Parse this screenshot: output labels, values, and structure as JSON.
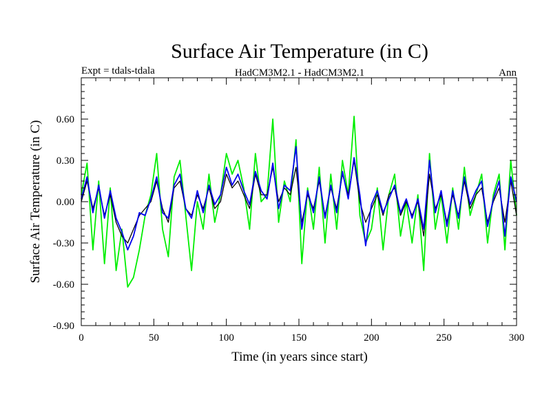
{
  "chart_data": {
    "type": "line",
    "title": "Surface Air Temperature (in C)",
    "subtitle_left": "Expt = tdals-tdala",
    "subtitle_center": "HadCM3M2.1 - HadCM3M2.1",
    "subtitle_right": "Ann",
    "xlabel": "Time (in years since start)",
    "ylabel": "Surface Air Temperature (in C)",
    "xlim": [
      0,
      300
    ],
    "ylim": [
      -0.9,
      0.9
    ],
    "xticks": [
      0,
      50,
      100,
      150,
      200,
      250,
      300
    ],
    "xtick_labels": [
      "0",
      "50",
      "100",
      "150",
      "200",
      "250",
      "300"
    ],
    "yticks": [
      -0.9,
      -0.6,
      -0.3,
      0.0,
      0.3,
      0.6
    ],
    "ytick_labels": [
      "-0.90",
      "-0.60",
      "-0.30",
      "0.00",
      "0.30",
      "0.60"
    ],
    "grid": false,
    "series": [
      {
        "name": "green",
        "color": "#00ee00",
        "x": [
          0,
          4,
          8,
          12,
          16,
          20,
          24,
          28,
          32,
          36,
          40,
          44,
          48,
          52,
          56,
          60,
          64,
          68,
          72,
          76,
          80,
          84,
          88,
          92,
          96,
          100,
          104,
          108,
          112,
          116,
          120,
          124,
          128,
          132,
          136,
          140,
          144,
          148,
          152,
          156,
          160,
          164,
          168,
          172,
          176,
          180,
          184,
          188,
          192,
          196,
          200,
          204,
          208,
          212,
          216,
          220,
          224,
          228,
          232,
          236,
          240,
          244,
          248,
          252,
          256,
          260,
          264,
          268,
          272,
          276,
          280,
          284,
          288,
          292,
          296,
          300
        ],
        "values": [
          0.05,
          0.28,
          -0.35,
          0.15,
          -0.45,
          0.1,
          -0.5,
          -0.2,
          -0.62,
          -0.55,
          -0.35,
          -0.1,
          0.05,
          0.35,
          -0.2,
          -0.4,
          0.18,
          0.3,
          -0.1,
          -0.5,
          0.0,
          -0.2,
          0.2,
          -0.15,
          0.05,
          0.35,
          0.2,
          0.3,
          0.1,
          -0.2,
          0.35,
          0.0,
          0.05,
          0.6,
          -0.15,
          0.15,
          0.0,
          0.45,
          -0.45,
          0.1,
          -0.2,
          0.25,
          -0.3,
          0.2,
          -0.2,
          0.3,
          0.05,
          0.62,
          -0.1,
          -0.3,
          -0.2,
          0.1,
          -0.35,
          0.05,
          0.2,
          -0.25,
          0.0,
          -0.3,
          0.05,
          -0.5,
          0.35,
          -0.2,
          0.05,
          -0.3,
          0.1,
          -0.2,
          0.25,
          -0.1,
          0.05,
          0.2,
          -0.3,
          0.05,
          0.2,
          -0.35,
          0.3,
          -0.1
        ]
      },
      {
        "name": "black",
        "color": "#000000",
        "x": [
          0,
          4,
          8,
          12,
          16,
          20,
          24,
          28,
          32,
          36,
          40,
          44,
          48,
          52,
          56,
          60,
          64,
          68,
          72,
          76,
          80,
          84,
          88,
          92,
          96,
          100,
          104,
          108,
          112,
          116,
          120,
          124,
          128,
          132,
          136,
          140,
          144,
          148,
          152,
          156,
          160,
          164,
          168,
          172,
          176,
          180,
          184,
          188,
          192,
          196,
          200,
          204,
          208,
          212,
          216,
          220,
          224,
          228,
          232,
          236,
          240,
          244,
          248,
          252,
          256,
          260,
          264,
          268,
          272,
          276,
          280,
          284,
          288,
          292,
          296,
          300
        ],
        "values": [
          0.0,
          0.15,
          -0.05,
          0.1,
          -0.1,
          0.05,
          -0.15,
          -0.25,
          -0.3,
          -0.2,
          -0.1,
          -0.05,
          0.0,
          0.15,
          -0.05,
          -0.15,
          0.1,
          0.15,
          -0.05,
          -0.1,
          0.05,
          -0.05,
          0.1,
          -0.05,
          0.0,
          0.2,
          0.1,
          0.15,
          0.05,
          -0.05,
          0.2,
          0.05,
          0.05,
          0.25,
          0.0,
          0.1,
          0.05,
          0.25,
          -0.15,
          0.05,
          -0.05,
          0.15,
          -0.1,
          0.1,
          -0.05,
          0.2,
          0.05,
          0.3,
          0.0,
          -0.15,
          -0.05,
          0.05,
          -0.1,
          0.05,
          0.1,
          -0.1,
          0.0,
          -0.1,
          0.0,
          -0.25,
          0.2,
          -0.05,
          0.05,
          -0.15,
          0.05,
          -0.1,
          0.15,
          -0.05,
          0.05,
          0.1,
          -0.15,
          0.0,
          0.1,
          -0.15,
          0.15,
          -0.1
        ]
      },
      {
        "name": "blue",
        "color": "#0000ee",
        "x": [
          0,
          4,
          8,
          12,
          16,
          20,
          24,
          28,
          32,
          36,
          40,
          44,
          48,
          52,
          56,
          60,
          64,
          68,
          72,
          76,
          80,
          84,
          88,
          92,
          96,
          100,
          104,
          108,
          112,
          116,
          120,
          124,
          128,
          132,
          136,
          140,
          144,
          148,
          152,
          156,
          160,
          164,
          168,
          172,
          176,
          180,
          184,
          188,
          192,
          196,
          200,
          204,
          208,
          212,
          216,
          220,
          224,
          228,
          232,
          236,
          240,
          244,
          248,
          252,
          256,
          260,
          264,
          268,
          272,
          276,
          280,
          284,
          288,
          292,
          296,
          300
        ],
        "values": [
          0.02,
          0.18,
          -0.08,
          0.12,
          -0.12,
          0.08,
          -0.12,
          -0.22,
          -0.35,
          -0.25,
          -0.08,
          -0.1,
          0.02,
          0.18,
          -0.08,
          -0.12,
          0.12,
          0.2,
          -0.05,
          -0.12,
          0.08,
          -0.08,
          0.12,
          -0.02,
          0.05,
          0.25,
          0.12,
          0.2,
          0.08,
          -0.02,
          0.22,
          0.08,
          0.02,
          0.28,
          -0.05,
          0.12,
          0.08,
          0.4,
          -0.2,
          0.08,
          -0.08,
          0.18,
          -0.12,
          0.12,
          -0.08,
          0.22,
          0.02,
          0.32,
          0.05,
          -0.32,
          -0.02,
          0.08,
          -0.08,
          0.02,
          0.12,
          -0.08,
          0.02,
          -0.12,
          0.02,
          -0.2,
          0.3,
          -0.08,
          0.08,
          -0.18,
          0.08,
          -0.12,
          0.18,
          -0.02,
          0.08,
          0.15,
          -0.18,
          0.02,
          0.15,
          -0.25,
          0.18,
          0.0
        ]
      }
    ]
  }
}
